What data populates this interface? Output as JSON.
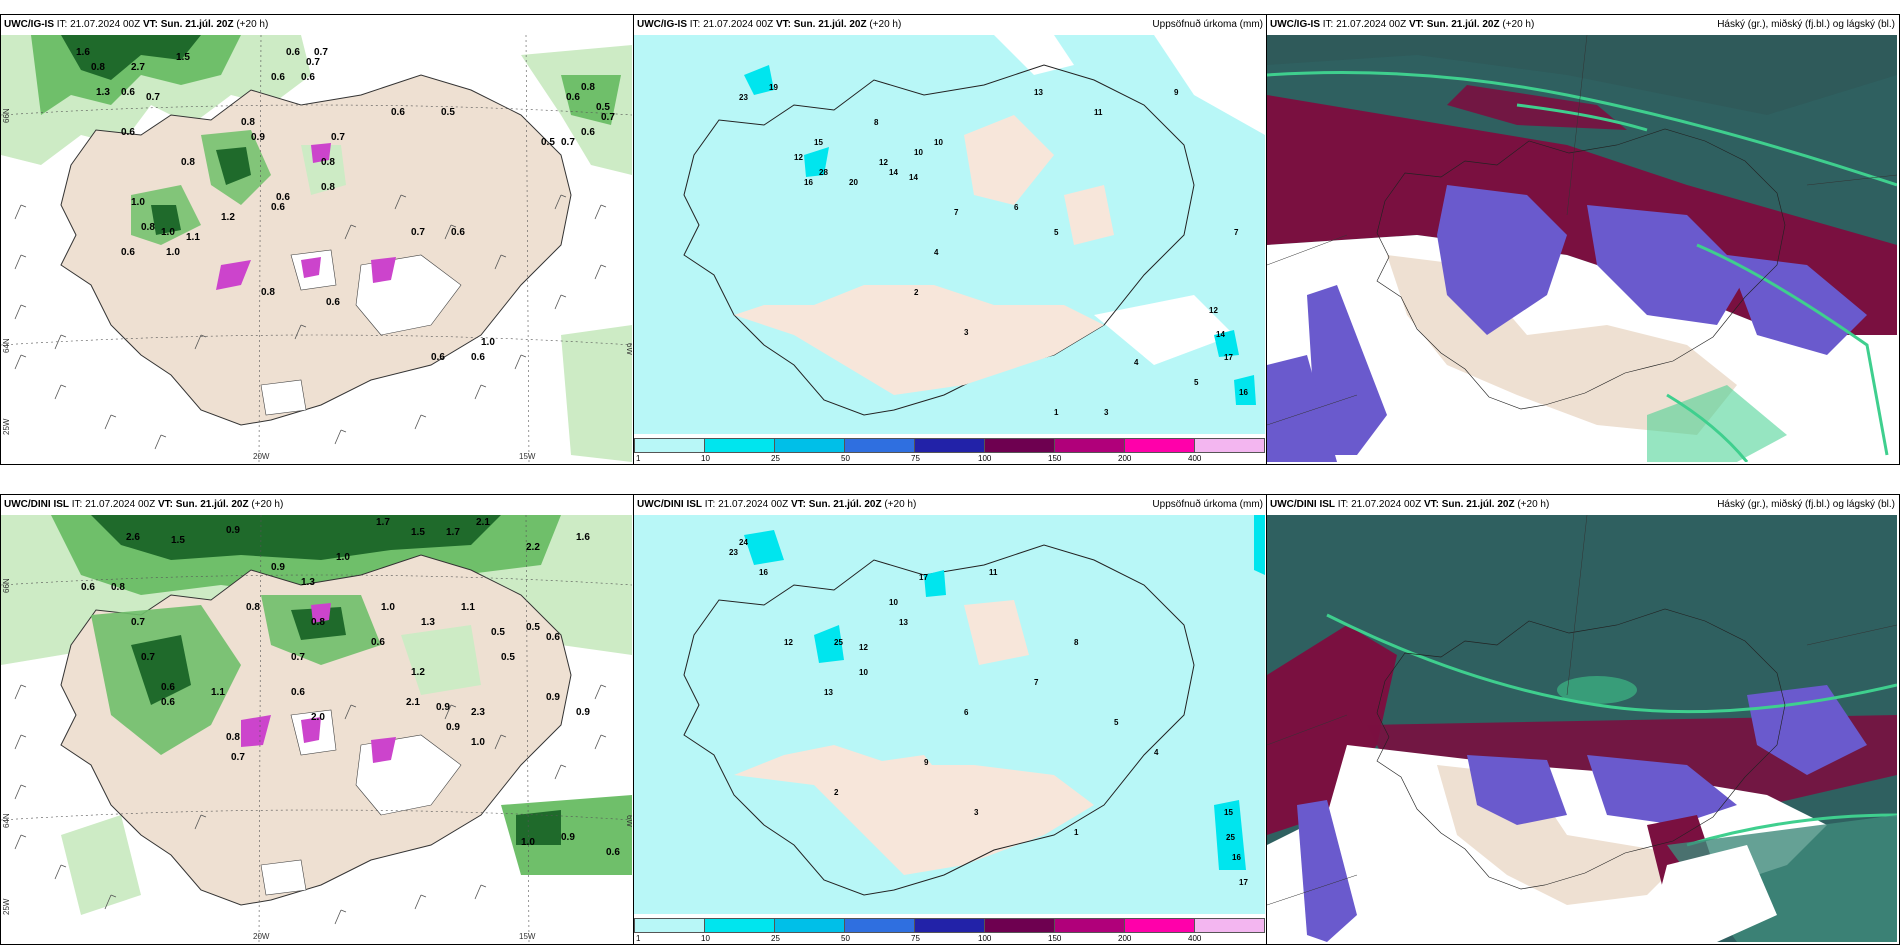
{
  "panels": [
    {
      "model": "UWC/IG-IS",
      "it": "IT: 21.07.2024 00Z",
      "vt": "VT:",
      "vt_value": "Sun. 21.júl. 20Z",
      "lead": "(+20 h)",
      "right": ""
    },
    {
      "model": "UWC/IG-IS",
      "it": "IT: 21.07.2024 00Z",
      "vt": "VT:",
      "vt_value": "Sun. 21.júl. 20Z",
      "lead": "(+20 h)",
      "right": "Uppsöfnuð úrkoma (mm)"
    },
    {
      "model": "UWC/IG-IS",
      "it": "IT: 21.07.2024 00Z",
      "vt": "VT:",
      "vt_value": "Sun. 21.júl. 20Z",
      "lead": "(+20 h)",
      "right": "Háský (gr.), miðský (fj.bl.) og lágský (bl.)"
    },
    {
      "model": "UWC/DINI ISL",
      "it": "IT: 21.07.2024 00Z",
      "vt": "VT:",
      "vt_value": "Sun. 21.júl. 20Z",
      "lead": "(+20 h)",
      "right": ""
    },
    {
      "model": "UWC/DINI ISL",
      "it": "IT: 21.07.2024 00Z",
      "vt": "VT:",
      "vt_value": "Sun. 21.júl. 20Z",
      "lead": "(+20 h)",
      "right": "Uppsöfnuð úrkoma (mm)"
    },
    {
      "model": "UWC/DINI ISL",
      "it": "IT: 21.07.2024 00Z",
      "vt": "VT:",
      "vt_value": "Sun. 21.júl. 20Z",
      "lead": "(+20 h)",
      "right": "Háský (gr.), miðský (fj.bl.) og lágský (bl.)"
    }
  ],
  "axes": {
    "lat1": "66N",
    "lat2": "64N",
    "lon_w": "25W",
    "lon1": "20W",
    "lon2": "15W",
    "lon_e": "6W"
  },
  "colorbar": {
    "ticks": [
      "1",
      "10",
      "25",
      "50",
      "75",
      "100",
      "150",
      "200",
      "400"
    ],
    "colors": [
      "#b8f7f7",
      "#00e5ee",
      "#00bfe8",
      "#2f6fe0",
      "#2222a8",
      "#6e0050",
      "#b0007a",
      "#ff00aa",
      "#f3b6f0"
    ]
  },
  "map_colors": {
    "sea": "#ffffff",
    "land": "#eee0d2",
    "green_light": "#cdebc5",
    "green_mid": "#6fbf6a",
    "green_dark": "#1f6a2b",
    "purple": "#cc44cc",
    "cyan_light": "#b8f7f7",
    "cyan": "#00e5ee",
    "cloud_high": "#2f6060",
    "cloud_mid": "#6a5acd",
    "cloud_low": "#7a1040",
    "cloud_green": "#3fcf8e"
  },
  "precip_labels_top": [
    "1.6",
    "0.8",
    "2.7",
    "0.6",
    "1.5",
    "1.3",
    "0.7",
    "0.6",
    "0.7",
    "0.5",
    "0.8",
    "0.9",
    "0.6",
    "0.8",
    "1.0",
    "0.7",
    "0.6",
    "0.6",
    "0.7",
    "0.6",
    "0.8",
    "0.6",
    "0.5",
    "0.7",
    "0.7",
    "0.6",
    "0.8",
    "0.6",
    "0.8",
    "1.0",
    "0.6",
    "0.6",
    "1.2",
    "0.7",
    "0.6",
    "0.8",
    "1.0",
    "1.1",
    "0.8",
    "0.6",
    "0.5",
    "1.0",
    "0.6",
    "0.6"
  ],
  "precip_labels_bottom": [
    "2.6",
    "1.5",
    "0.9",
    "2.2",
    "1.7",
    "1.5",
    "1.7",
    "1.6",
    "2.1",
    "0.6",
    "0.8",
    "0.9",
    "1.0",
    "1.3",
    "0.7",
    "0.8",
    "0.5",
    "0.6",
    "0.7",
    "0.6",
    "1.0",
    "1.2",
    "0.9",
    "0.8",
    "0.5",
    "0.7",
    "0.9",
    "1.3",
    "1.1",
    "2.0",
    "0.7",
    "0.6",
    "1.1",
    "0.8",
    "2.3",
    "0.9",
    "0.6",
    "1.0",
    "2.1",
    "0.9",
    "0.6",
    "0.5",
    "1.0",
    "0.6",
    "0.9"
  ],
  "accum_labels_top": [
    "19",
    "23",
    "12",
    "15",
    "20",
    "28",
    "14",
    "12",
    "10",
    "14",
    "16",
    "8",
    "7",
    "6",
    "5",
    "4",
    "3",
    "2",
    "1",
    "10",
    "12",
    "14",
    "17",
    "16",
    "3",
    "4",
    "5",
    "7",
    "9",
    "11",
    "13"
  ],
  "accum_labels_bottom": [
    "24",
    "23",
    "16",
    "12",
    "25",
    "17",
    "10",
    "13",
    "12",
    "11",
    "8",
    "7",
    "6",
    "5",
    "4",
    "3",
    "2",
    "1",
    "15",
    "25",
    "16",
    "17",
    "9",
    "13",
    "10"
  ]
}
